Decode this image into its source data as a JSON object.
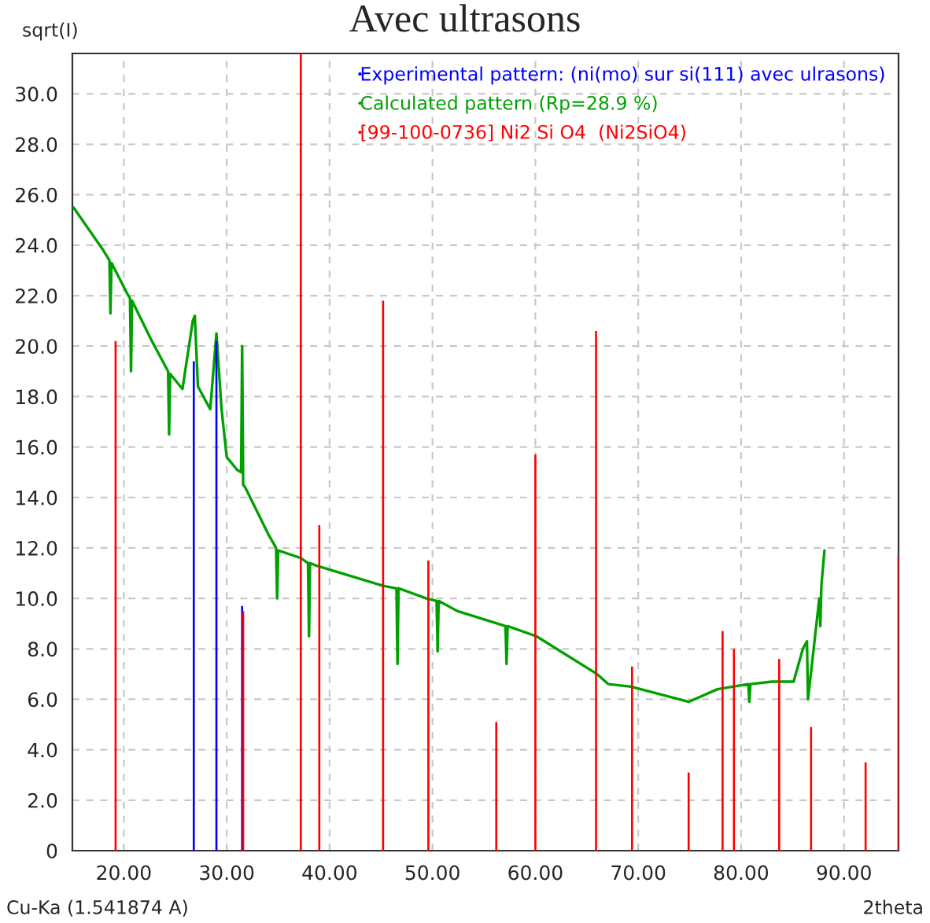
{
  "chart_data": {
    "type": "line",
    "title": "Avec ultrasons",
    "ylabel": "sqrt(I)",
    "xlabel": "2theta",
    "annotations": [
      "Cu-Ka (1.541874 A)"
    ],
    "xlim": [
      15,
      95.3
    ],
    "ylim": [
      0,
      31.6
    ],
    "xticks": [
      {
        "value": 20,
        "label": "20.00"
      },
      {
        "value": 30,
        "label": "30.00"
      },
      {
        "value": 40,
        "label": "40.00"
      },
      {
        "value": 50,
        "label": "50.00"
      },
      {
        "value": 60,
        "label": "60.00"
      },
      {
        "value": 70,
        "label": "70.00"
      },
      {
        "value": 80,
        "label": "80.00"
      },
      {
        "value": 90,
        "label": "90.00"
      }
    ],
    "yticks": [
      0,
      {
        "value": 2,
        "label": "2.0"
      },
      {
        "value": 4,
        "label": "4.0"
      },
      {
        "value": 6,
        "label": "6.0"
      },
      {
        "value": 8,
        "label": "8.0"
      },
      {
        "value": 10,
        "label": "10.0"
      },
      {
        "value": 12,
        "label": "12.0"
      },
      {
        "value": 14,
        "label": "14.0"
      },
      {
        "value": 16,
        "label": "16.0"
      },
      {
        "value": 18,
        "label": "18.0"
      },
      {
        "value": 20,
        "label": "20.0"
      },
      {
        "value": 22,
        "label": "22.0"
      },
      {
        "value": 24,
        "label": "24.0"
      },
      {
        "value": 26,
        "label": "26.0"
      },
      {
        "value": 28,
        "label": "28.0"
      },
      {
        "value": 30,
        "label": "30.0"
      }
    ],
    "grid": true,
    "legend": "top right",
    "series": [
      {
        "name": "Experimental pattern: (ni(mo) sur si(111) avec ulrasons)",
        "type": "bar",
        "color": "#0000ff",
        "x": [
          26.8,
          29.0,
          31.5
        ],
        "values": [
          19.4,
          20.2,
          9.7
        ]
      },
      {
        "name": "Calculated pattern (Rp=28.9 %)",
        "color": "#00a000",
        "x": [
          15.1,
          18.0,
          18.6,
          18.7,
          18.8,
          20.3,
          20.6,
          20.7,
          20.8,
          22.6,
          24.3,
          24.4,
          24.5,
          25.7,
          26.7,
          26.9,
          27.2,
          28.4,
          29.0,
          29.5,
          30.0,
          31.0,
          31.4,
          31.5,
          31.6,
          31.8,
          34.1,
          34.8,
          34.9,
          35.0,
          37.2,
          37.9,
          38.0,
          38.1,
          38.7,
          45.2,
          46.5,
          46.6,
          46.7,
          49.4,
          50.4,
          50.5,
          50.6,
          52.4,
          57.1,
          57.2,
          57.3,
          60.1,
          66.0,
          67.1,
          69.3,
          74.9,
          77.7,
          80.7,
          80.8,
          80.9,
          83.0,
          85.1,
          86.0,
          86.4,
          86.5,
          87.6,
          87.7,
          87.8,
          88.1
        ],
        "values": [
          25.5,
          23.8,
          23.4,
          21.3,
          23.3,
          22.1,
          21.9,
          19.0,
          21.8,
          20.3,
          19.0,
          16.5,
          18.9,
          18.3,
          21.0,
          21.2,
          18.4,
          17.5,
          20.5,
          17.5,
          15.6,
          15.1,
          15.0,
          20.0,
          14.5,
          14.4,
          12.5,
          12.0,
          10.0,
          11.9,
          11.6,
          11.4,
          8.5,
          11.4,
          11.3,
          10.5,
          10.4,
          7.4,
          10.4,
          10.0,
          9.9,
          7.9,
          9.9,
          9.5,
          8.9,
          7.4,
          8.9,
          8.5,
          7.0,
          6.6,
          6.5,
          5.9,
          6.4,
          6.6,
          5.9,
          6.6,
          6.7,
          6.7,
          8.0,
          8.3,
          6.0,
          10.0,
          8.9,
          10.5,
          11.9
        ]
      },
      {
        "name": "[99-100-0736] Ni2 Si O4  (Ni2SiO4)",
        "type": "bar",
        "color": "#ff0000",
        "x": [
          19.2,
          31.6,
          37.2,
          39.0,
          45.2,
          49.6,
          56.2,
          60.0,
          65.9,
          69.4,
          74.9,
          78.2,
          79.3,
          83.7,
          86.8,
          92.1,
          95.3
        ],
        "values": [
          20.2,
          9.5,
          31.6,
          12.9,
          21.8,
          11.5,
          5.1,
          15.7,
          20.6,
          7.3,
          3.1,
          8.7,
          8.0,
          7.6,
          4.9,
          3.5,
          11.7
        ]
      }
    ]
  }
}
